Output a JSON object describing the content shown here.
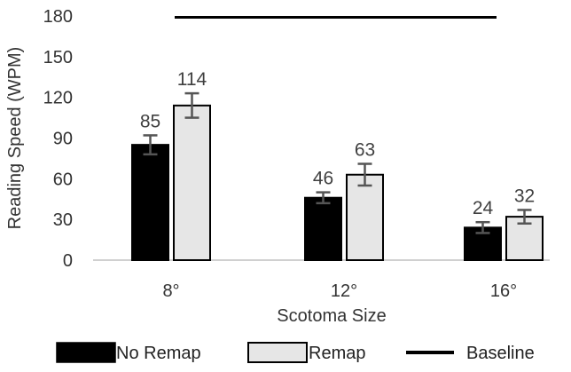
{
  "chart_data": {
    "type": "bar",
    "title": "",
    "xlabel": "Scotoma Size",
    "ylabel": "Reading Speed (WPM)",
    "ylim": [
      0,
      180
    ],
    "yticks": [
      0,
      30,
      60,
      90,
      120,
      150,
      180
    ],
    "categories": [
      "8°",
      "12°",
      "16°"
    ],
    "series": [
      {
        "name": "No Remap",
        "color": "#000000",
        "values": [
          85,
          46,
          24
        ],
        "error": [
          7,
          4,
          4
        ],
        "labels": [
          "85",
          "46",
          "24"
        ]
      },
      {
        "name": "Remap",
        "color": "#e6e6e6",
        "values": [
          114,
          63,
          32
        ],
        "error": [
          9,
          8,
          5
        ],
        "labels": [
          "114",
          "63",
          "32"
        ]
      }
    ],
    "baseline": {
      "name": "Baseline",
      "value": 179,
      "color": "#000000"
    },
    "grid": false,
    "legend": "bottom"
  }
}
